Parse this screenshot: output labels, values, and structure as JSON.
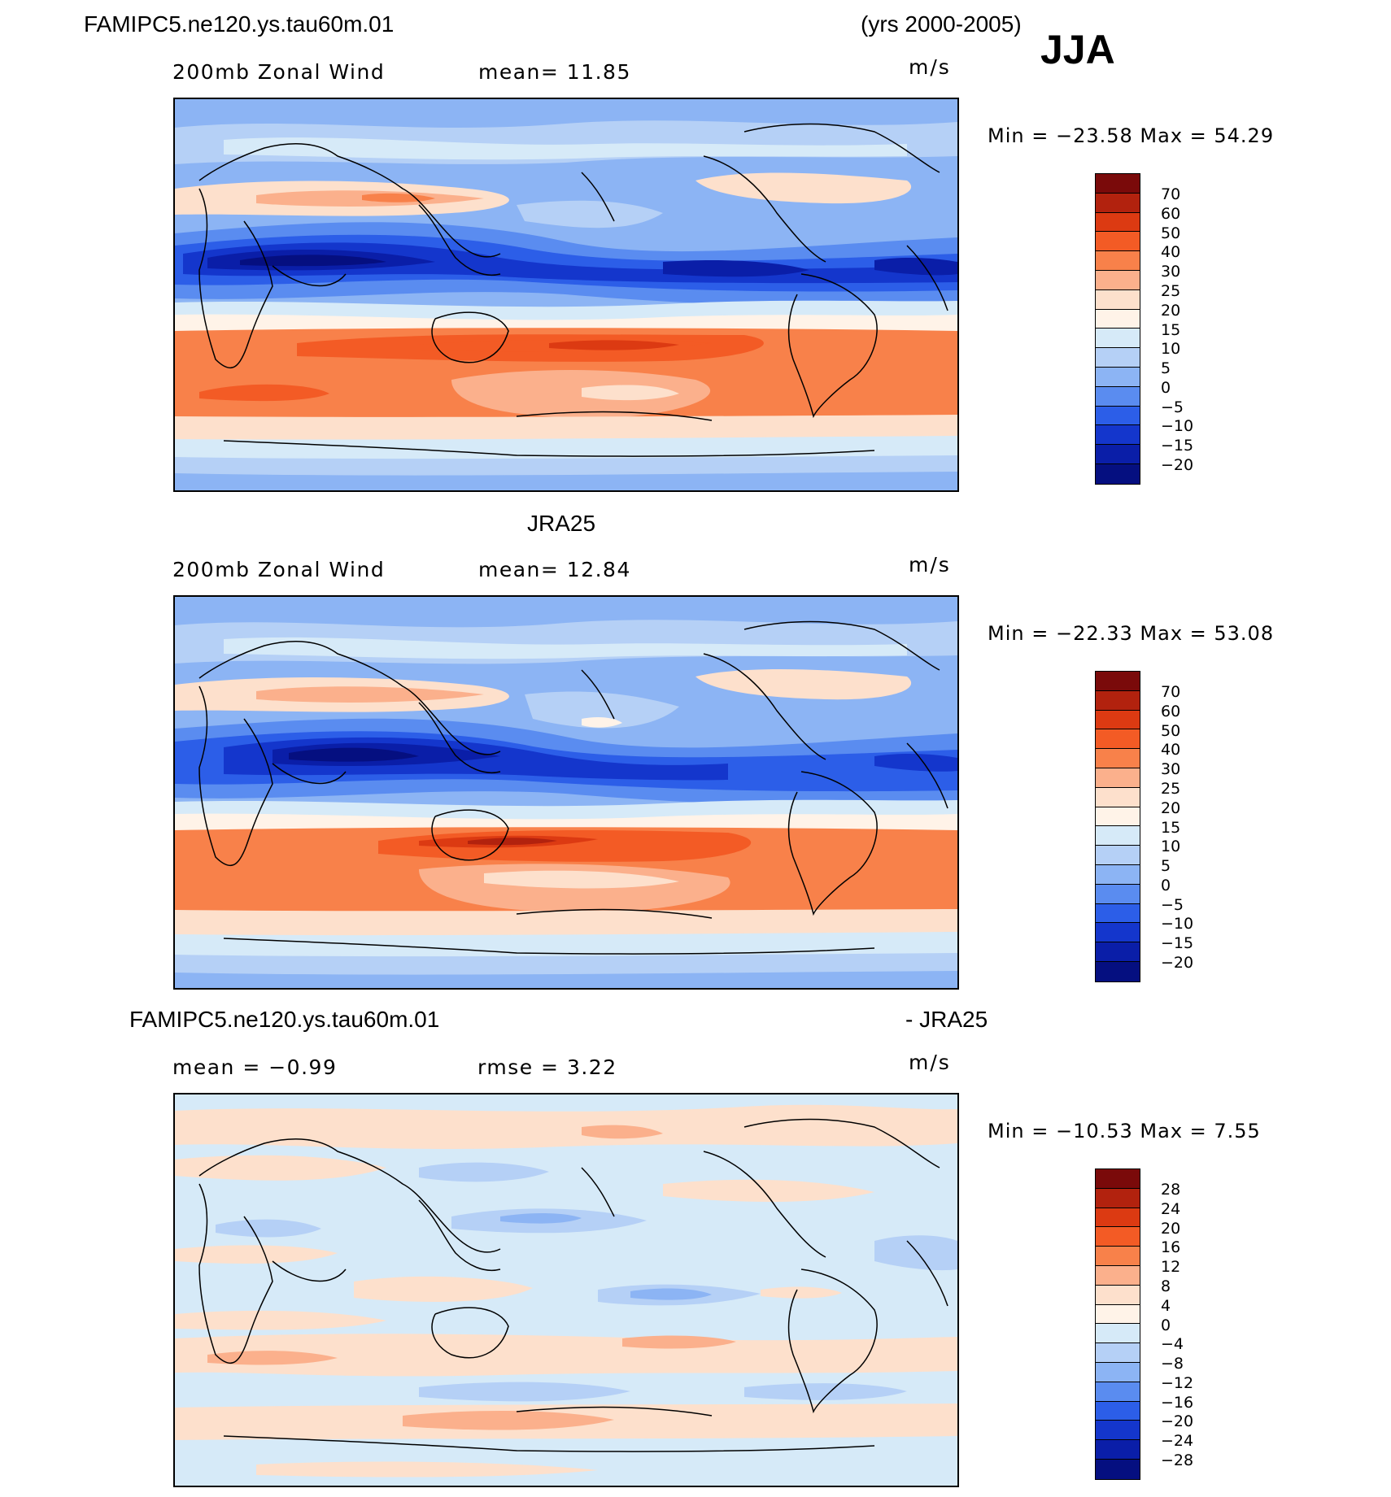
{
  "header": {
    "case_name": "FAMIPC5.ne120.ys.tau60m.01",
    "years": "(yrs 2000-2005)",
    "season": "JJA"
  },
  "panels": [
    {
      "title": "",
      "variable": "200mb Zonal Wind",
      "stat1": "mean=   11.85",
      "stat2": "",
      "units": "m/s",
      "minmax": "Min = −23.58 Max =   54.29",
      "colorbar": {
        "labels": [
          "70",
          "60",
          "50",
          "40",
          "30",
          "25",
          "20",
          "15",
          "10",
          "5",
          "0",
          "−5",
          "−10",
          "−15",
          "−20"
        ],
        "colors": [
          "#7a0a0a",
          "#b2220e",
          "#dc3a12",
          "#f35b25",
          "#f8814a",
          "#fbb08c",
          "#fde0cc",
          "#fff3e8",
          "#d6eaf8",
          "#b5d0f6",
          "#8cb4f4",
          "#5a8cf0",
          "#2c5ee8",
          "#1436cc",
          "#0a1ea8",
          "#050f80"
        ]
      },
      "contour_scale": "wind"
    },
    {
      "title": "JRA25",
      "variable": "200mb Zonal Wind",
      "stat1": "mean=   12.84",
      "stat2": "",
      "units": "m/s",
      "minmax": "Min = −22.33 Max =   53.08",
      "colorbar": {
        "labels": [
          "70",
          "60",
          "50",
          "40",
          "30",
          "25",
          "20",
          "15",
          "10",
          "5",
          "0",
          "−5",
          "−10",
          "−15",
          "−20"
        ],
        "colors": [
          "#7a0a0a",
          "#b2220e",
          "#dc3a12",
          "#f35b25",
          "#f8814a",
          "#fbb08c",
          "#fde0cc",
          "#fff3e8",
          "#d6eaf8",
          "#b5d0f6",
          "#8cb4f4",
          "#5a8cf0",
          "#2c5ee8",
          "#1436cc",
          "#0a1ea8",
          "#050f80"
        ]
      },
      "contour_scale": "wind"
    },
    {
      "title_left": "FAMIPC5.ne120.ys.tau60m.01",
      "title_right": "- JRA25",
      "variable": "",
      "stat1": "mean =   −0.99",
      "stat2": "rmse =    3.22",
      "units": "m/s",
      "minmax": "Min = −10.53 Max =    7.55",
      "colorbar": {
        "labels": [
          "28",
          "24",
          "20",
          "16",
          "12",
          "8",
          "4",
          "0",
          "−4",
          "−8",
          "−12",
          "−16",
          "−20",
          "−24",
          "−28"
        ],
        "colors": [
          "#7a0a0a",
          "#b2220e",
          "#dc3a12",
          "#f35b25",
          "#f8814a",
          "#fbb08c",
          "#fde0cc",
          "#fff3e8",
          "#d6eaf8",
          "#b5d0f6",
          "#8cb4f4",
          "#5a8cf0",
          "#2c5ee8",
          "#1436cc",
          "#0a1ea8",
          "#050f80"
        ]
      },
      "contour_scale": "diff"
    }
  ]
}
